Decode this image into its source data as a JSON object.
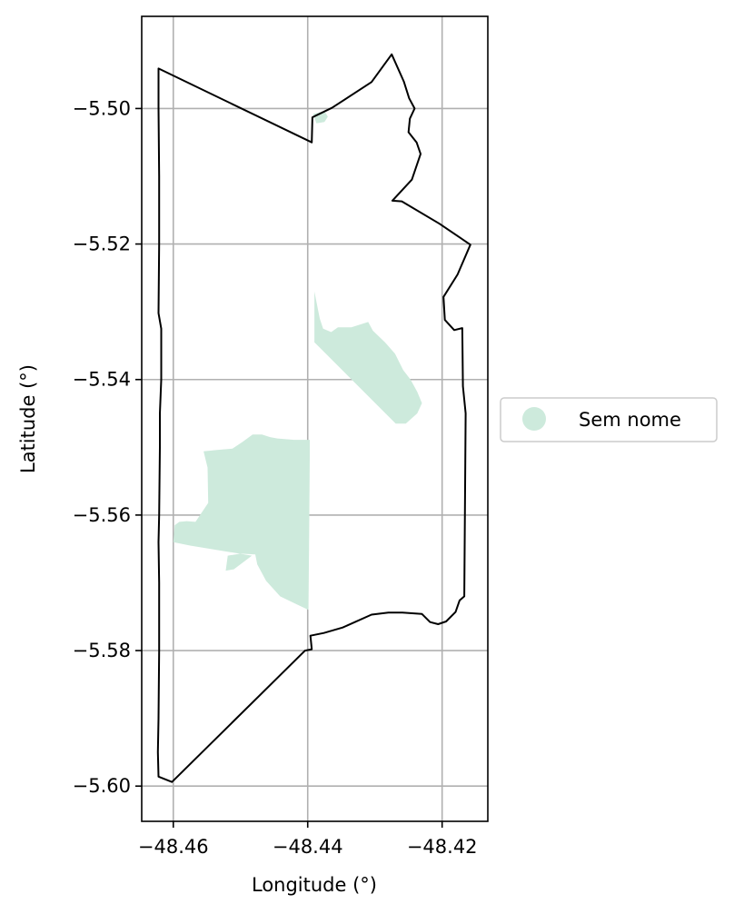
{
  "chart_data": {
    "type": "map",
    "xlabel": "Longitude (°)",
    "ylabel": "Latitude (°)",
    "xlim": [
      -48.4647,
      -48.4132
    ],
    "ylim": [
      -5.6052,
      -5.4864
    ],
    "xticks": [
      -48.46,
      -48.44,
      -48.42
    ],
    "xtick_labels": [
      "−48.46",
      "−48.44",
      "−48.42"
    ],
    "yticks": [
      -5.6,
      -5.58,
      -5.56,
      -5.54,
      -5.52,
      -5.5
    ],
    "ytick_labels": [
      "−5.60",
      "−5.58",
      "−5.56",
      "−5.54",
      "−5.52",
      "−5.50"
    ],
    "grid": true,
    "legend_position": "center-right-outside",
    "legend": [
      {
        "label": "Sem nome",
        "color": "#cdeadc"
      }
    ],
    "boundary": {
      "name": "",
      "stroke": "#000000",
      "coords": [
        [
          -48.4622,
          -5.4941
        ],
        [
          -48.4394,
          -5.505
        ],
        [
          -48.4393,
          -5.5013
        ],
        [
          -48.4364,
          -5.4999
        ],
        [
          -48.4305,
          -5.4961
        ],
        [
          -48.4275,
          -5.492
        ],
        [
          -48.4257,
          -5.496
        ],
        [
          -48.4249,
          -5.4985
        ],
        [
          -48.4241,
          -5.5
        ],
        [
          -48.4248,
          -5.5015
        ],
        [
          -48.425,
          -5.5035
        ],
        [
          -48.4238,
          -5.505
        ],
        [
          -48.4232,
          -5.5067
        ],
        [
          -48.4245,
          -5.5105
        ],
        [
          -48.4274,
          -5.5136
        ],
        [
          -48.426,
          -5.5137
        ],
        [
          -48.4204,
          -5.517
        ],
        [
          -48.4158,
          -5.5201
        ],
        [
          -48.4177,
          -5.5245
        ],
        [
          -48.4198,
          -5.5278
        ],
        [
          -48.4196,
          -5.5312
        ],
        [
          -48.4182,
          -5.5327
        ],
        [
          -48.417,
          -5.5324
        ],
        [
          -48.4169,
          -5.541
        ],
        [
          -48.4165,
          -5.545
        ],
        [
          -48.4167,
          -5.572
        ],
        [
          -48.4174,
          -5.5726
        ],
        [
          -48.418,
          -5.5743
        ],
        [
          -48.4194,
          -5.5757
        ],
        [
          -48.4206,
          -5.5761
        ],
        [
          -48.4218,
          -5.5758
        ],
        [
          -48.423,
          -5.5746
        ],
        [
          -48.4259,
          -5.5744
        ],
        [
          -48.428,
          -5.5744
        ],
        [
          -48.4305,
          -5.5747
        ],
        [
          -48.4348,
          -5.5766
        ],
        [
          -48.4376,
          -5.5774
        ],
        [
          -48.4396,
          -5.5778
        ],
        [
          -48.4394,
          -5.5798
        ],
        [
          -48.4404,
          -5.58
        ],
        [
          -48.4602,
          -5.5994
        ],
        [
          -48.4622,
          -5.5986
        ],
        [
          -48.4623,
          -5.595
        ],
        [
          -48.4622,
          -5.59
        ],
        [
          -48.4621,
          -5.58
        ],
        [
          -48.4621,
          -5.57
        ],
        [
          -48.4622,
          -5.564
        ],
        [
          -48.4621,
          -5.56
        ],
        [
          -48.462,
          -5.55
        ],
        [
          -48.462,
          -5.545
        ],
        [
          -48.4618,
          -5.54
        ],
        [
          -48.4618,
          -5.5325
        ],
        [
          -48.4622,
          -5.5302
        ],
        [
          -48.4621,
          -5.52
        ],
        [
          -48.4621,
          -5.51
        ],
        [
          -48.4622,
          -5.5
        ],
        [
          -48.4622,
          -5.4941
        ]
      ]
    },
    "regions": [
      {
        "name": "Sem nome",
        "fill": "#cdeadc",
        "coords": [
          [
            -48.46,
            -5.564
          ],
          [
            -48.4598,
            -5.5615
          ],
          [
            -48.4591,
            -5.561
          ],
          [
            -48.458,
            -5.5609
          ],
          [
            -48.4567,
            -5.561
          ],
          [
            -48.4548,
            -5.5582
          ],
          [
            -48.4549,
            -5.553
          ],
          [
            -48.4555,
            -5.5506
          ],
          [
            -48.4535,
            -5.5504
          ],
          [
            -48.4512,
            -5.5502
          ],
          [
            -48.4497,
            -5.5492
          ],
          [
            -48.4482,
            -5.5481
          ],
          [
            -48.4468,
            -5.5481
          ],
          [
            -48.4456,
            -5.5485
          ],
          [
            -48.4445,
            -5.5487
          ],
          [
            -48.442,
            -5.5489
          ],
          [
            -48.441,
            -5.5489
          ],
          [
            -48.4397,
            -5.5489
          ],
          [
            -48.4397,
            -5.5512
          ],
          [
            -48.4398,
            -5.565
          ],
          [
            -48.4399,
            -5.574
          ],
          [
            -48.442,
            -5.573
          ],
          [
            -48.4441,
            -5.572
          ],
          [
            -48.4462,
            -5.5697
          ],
          [
            -48.4475,
            -5.5673
          ],
          [
            -48.4478,
            -5.5658
          ],
          [
            -48.45,
            -5.5657
          ],
          [
            -48.4519,
            -5.566
          ],
          [
            -48.4522,
            -5.5682
          ],
          [
            -48.451,
            -5.568
          ],
          [
            -48.4483,
            -5.566
          ],
          [
            -48.4575,
            -5.5645
          ],
          [
            -48.46,
            -5.564
          ]
        ]
      },
      {
        "name": "Sem nome",
        "fill": "#cdeadc",
        "coords": [
          [
            -48.439,
            -5.527
          ],
          [
            -48.4387,
            -5.5285
          ],
          [
            -48.4382,
            -5.531
          ],
          [
            -48.4377,
            -5.5325
          ],
          [
            -48.4365,
            -5.533
          ],
          [
            -48.4355,
            -5.5323
          ],
          [
            -48.4335,
            -5.5323
          ],
          [
            -48.431,
            -5.5315
          ],
          [
            -48.4303,
            -5.5328
          ],
          [
            -48.4285,
            -5.5345
          ],
          [
            -48.427,
            -5.5362
          ],
          [
            -48.4258,
            -5.5386
          ],
          [
            -48.4247,
            -5.54
          ],
          [
            -48.4237,
            -5.5418
          ],
          [
            -48.423,
            -5.5435
          ],
          [
            -48.4237,
            -5.545
          ],
          [
            -48.4254,
            -5.5465
          ],
          [
            -48.4269,
            -5.5465
          ],
          [
            -48.439,
            -5.5345
          ],
          [
            -48.439,
            -5.527
          ]
        ]
      },
      {
        "name": "Sem nome",
        "fill": "#cdeadc",
        "coords": [
          [
            -48.4392,
            -5.5008
          ],
          [
            -48.4375,
            -5.5004
          ],
          [
            -48.437,
            -5.5012
          ],
          [
            -48.4375,
            -5.502
          ],
          [
            -48.4387,
            -5.5022
          ],
          [
            -48.4392,
            -5.5008
          ]
        ]
      }
    ]
  }
}
